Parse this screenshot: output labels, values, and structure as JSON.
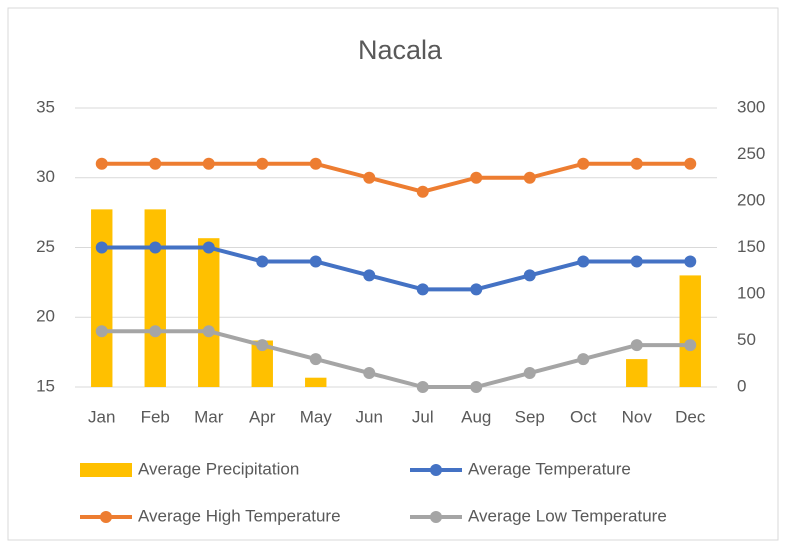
{
  "chart_data": {
    "type": "bar",
    "title": "Nacala",
    "categories": [
      "Jan",
      "Feb",
      "Mar",
      "Apr",
      "May",
      "Jun",
      "Jul",
      "Aug",
      "Sep",
      "Oct",
      "Nov",
      "Dec"
    ],
    "series": [
      {
        "name": "Average Precipitation",
        "type": "bar",
        "axis": "y2",
        "color": "#ffc000",
        "values": [
          191,
          191,
          160,
          50,
          10,
          0,
          0,
          0,
          0,
          0,
          30,
          120
        ]
      },
      {
        "name": "Average Temperature",
        "type": "line",
        "color": "#4472c4",
        "values": [
          25,
          25,
          25,
          24,
          24,
          23,
          22,
          22,
          23,
          24,
          24,
          24
        ]
      },
      {
        "name": "Average High Temperature",
        "type": "line",
        "color": "#ed7d31",
        "values": [
          31,
          31,
          31,
          31,
          31,
          30,
          29,
          30,
          30,
          31,
          31,
          31
        ]
      },
      {
        "name": "Average Low Temperature",
        "type": "line",
        "color": "#a5a5a5",
        "values": [
          19,
          19,
          19,
          18,
          17,
          16,
          15,
          15,
          16,
          17,
          18,
          18
        ]
      }
    ],
    "ylim": [
      15,
      35
    ],
    "yticks": [
      15,
      20,
      25,
      30,
      35
    ],
    "y2lim": [
      0,
      300
    ],
    "y2ticks": [
      0,
      50,
      100,
      150,
      200,
      250,
      300
    ],
    "grid": true
  }
}
